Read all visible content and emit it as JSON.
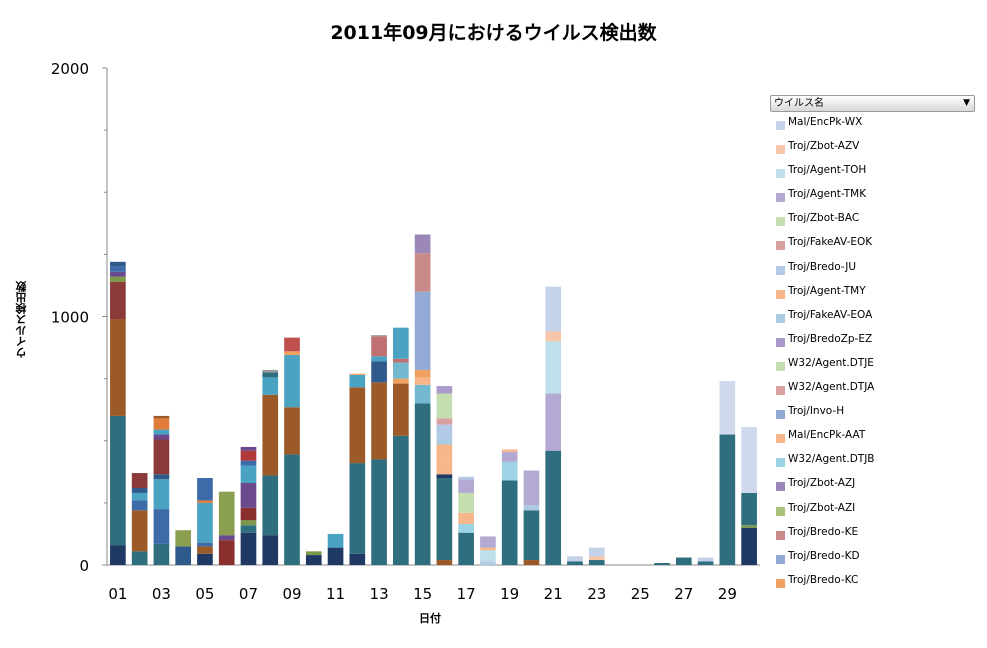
{
  "chart_data": {
    "type": "bar",
    "stacked": true,
    "title": "2011年09月におけるウイルス検出数",
    "xlabel": "日付",
    "ylabel": "ウイルス検出数",
    "ylim": [
      0,
      2000
    ],
    "yticks": [
      "0",
      "1000",
      "2000"
    ],
    "categories": [
      "01",
      "02",
      "03",
      "04",
      "05",
      "06",
      "07",
      "08",
      "09",
      "10",
      "11",
      "12",
      "13",
      "14",
      "15",
      "16",
      "17",
      "18",
      "19",
      "20",
      "21",
      "22",
      "23",
      "24",
      "25",
      "26",
      "27",
      "28",
      "29",
      "30"
    ],
    "xtick_labels": [
      "01",
      "03",
      "05",
      "07",
      "09",
      "11",
      "13",
      "15",
      "17",
      "19",
      "21",
      "23",
      "25",
      "27",
      "29"
    ],
    "legend_position": "right",
    "legend_title": "ウイルス名",
    "legend": [
      "Mal/EncPk-WX",
      "Troj/Zbot-AZV",
      "Troj/Agent-TOH",
      "Troj/Agent-TMK",
      "Troj/Zbot-BAC",
      "Troj/FakeAV-EOK",
      "Troj/Bredo-JU",
      "Troj/Agent-TMY",
      "Troj/FakeAV-EOA",
      "Troj/BredoZp-EZ",
      "W32/Agent.DTJE",
      "W32/Agent.DTJA",
      "Troj/Invo-H",
      "Mal/EncPk-AAT",
      "W32/Agent.DTJB",
      "Troj/Zbot-AZJ",
      "Troj/Zbot-AZI",
      "Troj/Bredo-KE",
      "Troj/Bredo-KD",
      "Troj/Bredo-KC"
    ],
    "stacks": [
      [
        [
          80,
          "#1f3864"
        ],
        [
          520,
          "#2e6e7e"
        ],
        [
          390,
          "#9c5a28"
        ],
        [
          150,
          "#8b3a3a"
        ],
        [
          20,
          "#7a9a4a"
        ],
        [
          20,
          "#6a4a8c"
        ],
        [
          20,
          "#3d6aa8"
        ],
        [
          20,
          "#2f5a8c"
        ]
      ],
      [
        [
          55,
          "#2e6e7e"
        ],
        [
          165,
          "#9c5a28"
        ],
        [
          40,
          "#3d6aa8"
        ],
        [
          30,
          "#4aa3c2"
        ],
        [
          20,
          "#2f5a8c"
        ],
        [
          60,
          "#8b3a3a"
        ]
      ],
      [
        [
          85,
          "#2e6e7e"
        ],
        [
          140,
          "#3d6aa8"
        ],
        [
          120,
          "#4aa3c2"
        ],
        [
          20,
          "#2f5a8c"
        ],
        [
          140,
          "#8b3a3a"
        ],
        [
          20,
          "#6a4a8c"
        ],
        [
          20,
          "#4aa3c2"
        ],
        [
          45,
          "#e07b39"
        ],
        [
          10,
          "#9c5a28"
        ]
      ],
      [
        [
          75,
          "#2f5a8c"
        ],
        [
          65,
          "#8aa050"
        ]
      ],
      [
        [
          45,
          "#1f3864"
        ],
        [
          30,
          "#9c5a28"
        ],
        [
          15,
          "#3d6aa8"
        ],
        [
          160,
          "#4aa3c2"
        ],
        [
          10,
          "#e07b39"
        ],
        [
          90,
          "#3d6aa8"
        ]
      ],
      [
        [
          100,
          "#8b2e2e"
        ],
        [
          20,
          "#6a4a8c"
        ],
        [
          175,
          "#8aa050"
        ]
      ],
      [
        [
          130,
          "#1f3864"
        ],
        [
          30,
          "#2e6e7e"
        ],
        [
          20,
          "#7a9a4a"
        ],
        [
          50,
          "#8b2e2e"
        ],
        [
          100,
          "#6a4a8c"
        ],
        [
          70,
          "#4aa3c2"
        ],
        [
          20,
          "#3d6aa8"
        ],
        [
          40,
          "#b03a3a"
        ],
        [
          15,
          "#6a4a8c"
        ]
      ],
      [
        [
          120,
          "#1f3864"
        ],
        [
          240,
          "#2e6e7e"
        ],
        [
          325,
          "#9c5a28"
        ],
        [
          70,
          "#4aa3c2"
        ],
        [
          20,
          "#2e6e7e"
        ],
        [
          10,
          "#9a9a9a"
        ]
      ],
      [
        [
          445,
          "#2e6e7e"
        ],
        [
          190,
          "#9c5a28"
        ],
        [
          210,
          "#4aa3c2"
        ],
        [
          15,
          "#f0a060"
        ],
        [
          55,
          "#c0504d"
        ]
      ],
      [
        [
          40,
          "#1f3864"
        ],
        [
          15,
          "#7a9a4a"
        ]
      ],
      [
        [
          70,
          "#1f3864"
        ],
        [
          55,
          "#4aa3c2"
        ]
      ],
      [
        [
          45,
          "#1f3864"
        ],
        [
          365,
          "#2e6e7e"
        ],
        [
          305,
          "#9c5a28"
        ],
        [
          50,
          "#4aa3c2"
        ],
        [
          5,
          "#f0a060"
        ]
      ],
      [
        [
          425,
          "#2e6e7e"
        ],
        [
          310,
          "#9c5a28"
        ],
        [
          85,
          "#2f5a8c"
        ],
        [
          20,
          "#4aa3c2"
        ],
        [
          80,
          "#c07070"
        ],
        [
          5,
          "#9a9a9a"
        ]
      ],
      [
        [
          520,
          "#2e6e7e"
        ],
        [
          210,
          "#9c5a28"
        ],
        [
          20,
          "#f0a060"
        ],
        [
          65,
          "#74b8cf"
        ],
        [
          15,
          "#c07070"
        ],
        [
          125,
          "#4aa3c2"
        ]
      ],
      [
        [
          650,
          "#2e6e7e"
        ],
        [
          75,
          "#74b8cf"
        ],
        [
          30,
          "#f7b58a"
        ],
        [
          30,
          "#f0a060"
        ],
        [
          315,
          "#93aad5"
        ],
        [
          155,
          "#c98a8a"
        ],
        [
          75,
          "#9b88b8"
        ]
      ],
      [
        [
          20,
          "#9c5a28"
        ],
        [
          330,
          "#2e6e7e"
        ],
        [
          15,
          "#1f3864"
        ],
        [
          50,
          "#f7b58a"
        ],
        [
          70,
          "#f7b58a"
        ],
        [
          25,
          "#a9cce3"
        ],
        [
          55,
          "#b3c9e8"
        ],
        [
          25,
          "#d9a0a0"
        ],
        [
          100,
          "#c5deb0"
        ],
        [
          30,
          "#a99ac9"
        ]
      ],
      [
        [
          130,
          "#2e6e7e"
        ],
        [
          35,
          "#9dd4e5"
        ],
        [
          45,
          "#f7b58a"
        ],
        [
          80,
          "#c5deb0"
        ],
        [
          55,
          "#b3a9d2"
        ],
        [
          10,
          "#b3c9e8"
        ]
      ],
      [
        [
          15,
          "#b3c9e8"
        ],
        [
          45,
          "#bfe0ea"
        ],
        [
          10,
          "#f7b58a"
        ],
        [
          45,
          "#b3a9d2"
        ]
      ],
      [
        [
          340,
          "#2e6e7e"
        ],
        [
          75,
          "#9dd4e5"
        ],
        [
          40,
          "#b3a9d2"
        ],
        [
          10,
          "#f7b58a"
        ]
      ],
      [
        [
          20,
          "#9c5a28"
        ],
        [
          200,
          "#2e6e7e"
        ],
        [
          20,
          "#a9cce3"
        ],
        [
          140,
          "#b3a9d2"
        ]
      ],
      [
        [
          460,
          "#2e6e7e"
        ],
        [
          230,
          "#b3a9d2"
        ],
        [
          210,
          "#bfe0ea"
        ],
        [
          40,
          "#f7c6a8"
        ],
        [
          180,
          "#c5d3ea"
        ]
      ],
      [
        [
          15,
          "#2e6e7e"
        ],
        [
          20,
          "#c5d3ea"
        ]
      ],
      [
        [
          20,
          "#2e6e7e"
        ],
        [
          15,
          "#f7c6a8"
        ],
        [
          35,
          "#c5d3ea"
        ]
      ],
      [],
      [],
      [
        [
          8,
          "#2e6e7e"
        ]
      ],
      [
        [
          30,
          "#2e6e7e"
        ]
      ],
      [
        [
          15,
          "#2e6e7e"
        ],
        [
          15,
          "#c5d3ea"
        ]
      ],
      [
        [
          525,
          "#2e6e7e"
        ],
        [
          215,
          "#d0d9ec"
        ]
      ],
      [
        [
          150,
          "#1f3864"
        ],
        [
          10,
          "#7a9a4a"
        ],
        [
          130,
          "#2e6e7e"
        ],
        [
          265,
          "#d0d9ec"
        ]
      ]
    ],
    "legend_colors": [
      "#c5d3ea",
      "#f7c6a8",
      "#bfe0ea",
      "#b3a9d2",
      "#c5deb0",
      "#d9a0a0",
      "#b3c9e8",
      "#f7b58a",
      "#a9cce3",
      "#a99ac9",
      "#c5deb0",
      "#d9a0a0",
      "#93aad5",
      "#f7b58a",
      "#9dd4e5",
      "#9b88b8",
      "#a8c27a",
      "#c98a8a",
      "#93aad5",
      "#f0a060"
    ]
  }
}
